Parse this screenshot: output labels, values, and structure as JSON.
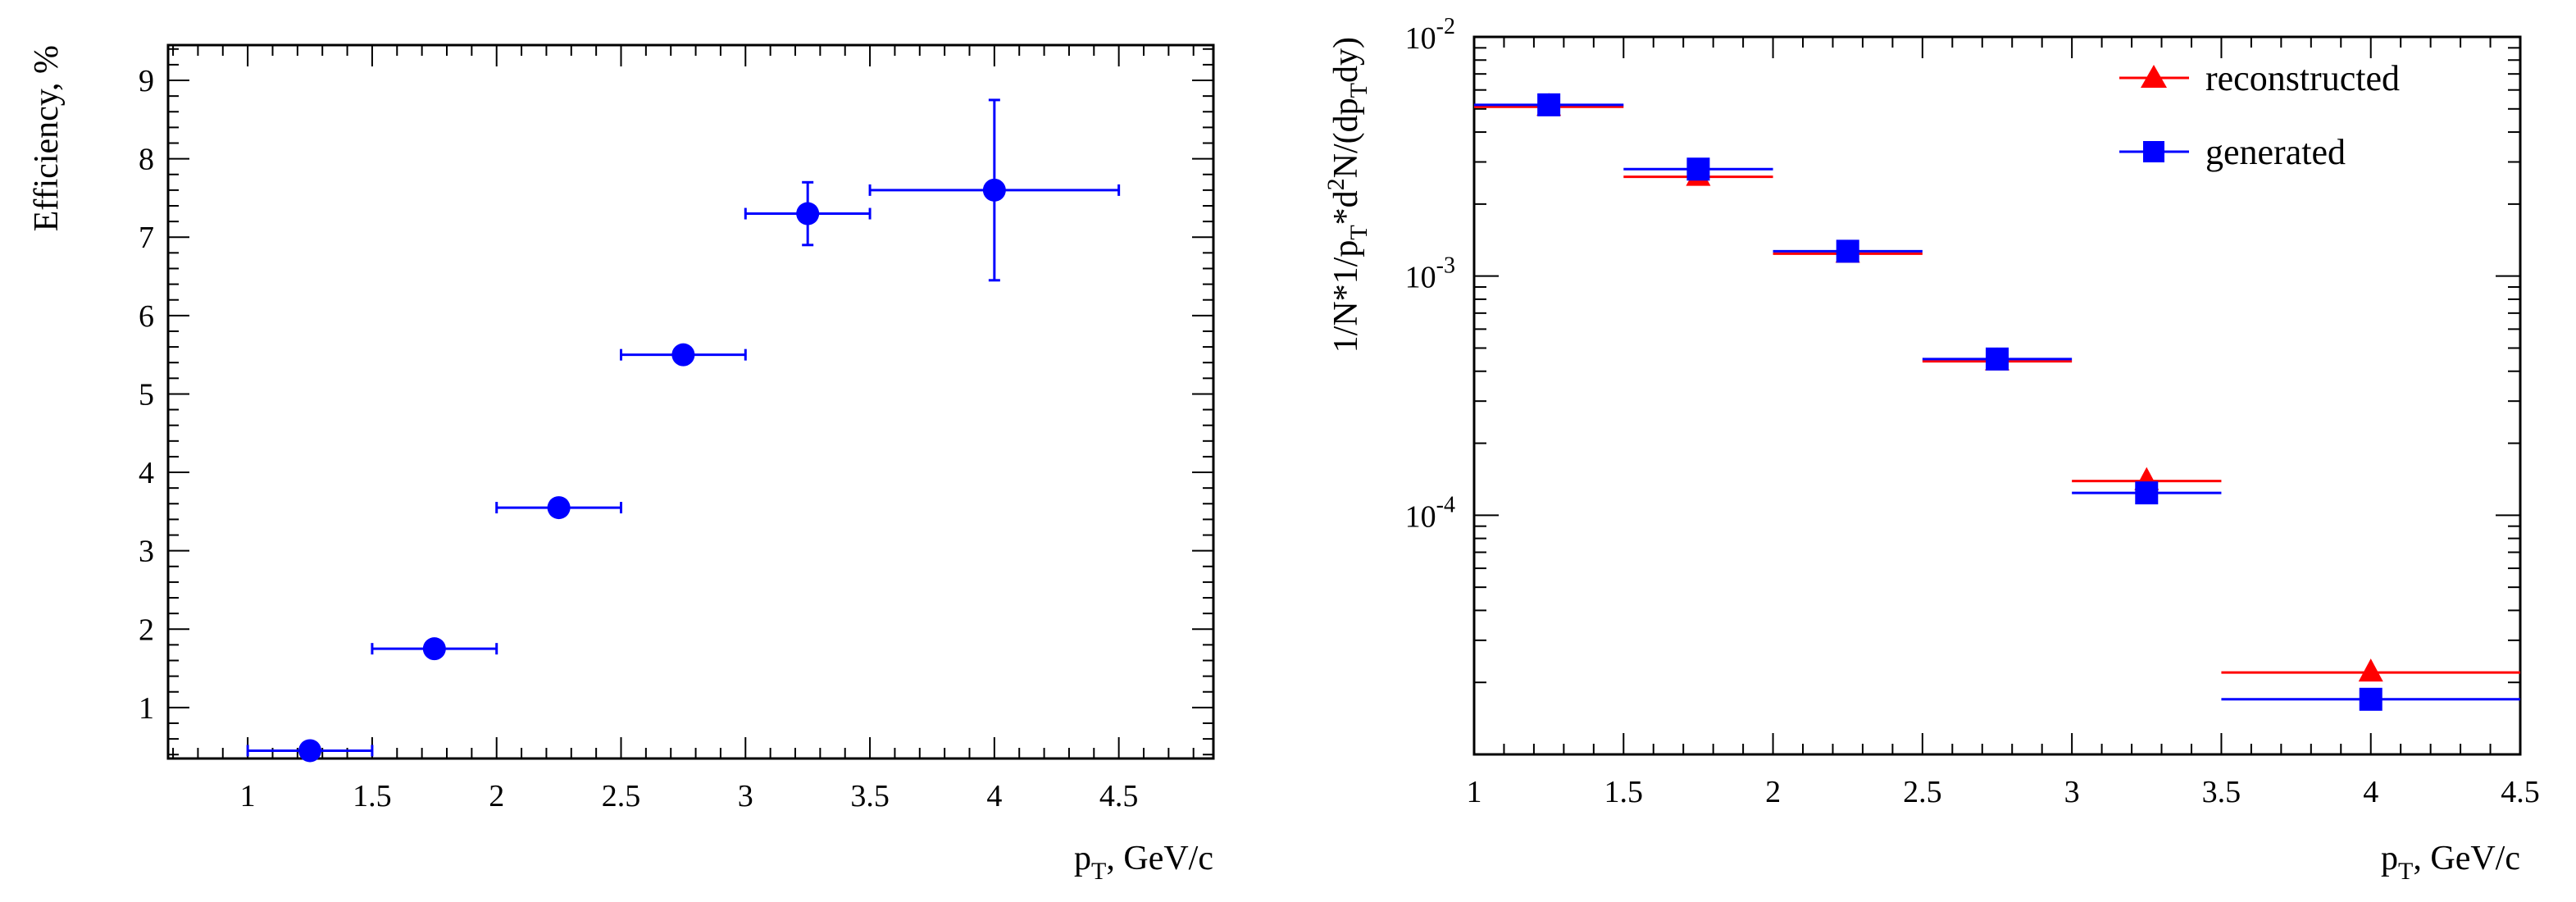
{
  "chart_data": [
    {
      "type": "scatter",
      "title": "",
      "xlabel": {
        "main": "p",
        "sub": "T",
        "rest": ", GeV/c"
      },
      "ylabel": "Efficiency, %",
      "xlim": [
        0.68,
        4.88
      ],
      "ylim": [
        0.35,
        9.45
      ],
      "x_ticks": [
        "1",
        "1.5",
        "2",
        "2.5",
        "3",
        "3.5",
        "4",
        "4.5"
      ],
      "y_ticks": [
        "1",
        "2",
        "3",
        "4",
        "5",
        "6",
        "7",
        "8",
        "9"
      ],
      "series": [
        {
          "name": "efficiency",
          "color": "#0000ff",
          "marker": "circle",
          "points": [
            {
              "x": 1.25,
              "y": 0.45,
              "xlo": 1.0,
              "xhi": 1.5,
              "ylo": 0.4,
              "yhi": 0.5
            },
            {
              "x": 1.75,
              "y": 1.75,
              "xlo": 1.5,
              "xhi": 2.0,
              "ylo": 1.7,
              "yhi": 1.8
            },
            {
              "x": 2.25,
              "y": 3.55,
              "xlo": 2.0,
              "xhi": 2.5,
              "ylo": 3.5,
              "yhi": 3.6
            },
            {
              "x": 2.75,
              "y": 5.5,
              "xlo": 2.5,
              "xhi": 3.0,
              "ylo": 5.42,
              "yhi": 5.58
            },
            {
              "x": 3.25,
              "y": 7.3,
              "xlo": 3.0,
              "xhi": 3.5,
              "ylo": 6.9,
              "yhi": 7.7
            },
            {
              "x": 4.0,
              "y": 7.6,
              "xlo": 3.5,
              "xhi": 4.5,
              "ylo": 6.45,
              "yhi": 8.75
            }
          ]
        }
      ]
    },
    {
      "type": "scatter",
      "title": "",
      "xlabel": {
        "main": "p",
        "sub": "T",
        "rest": ", GeV/c"
      },
      "ylabel": "1/N*1/pT*d2N/(dpTdy)",
      "yscale": "log",
      "xlim": [
        1.0,
        4.5
      ],
      "ylim": [
        1e-05,
        0.01
      ],
      "x_ticks": [
        "1",
        "1.5",
        "2",
        "2.5",
        "3",
        "3.5",
        "4",
        "4.5"
      ],
      "y_ticks": [
        {
          "value": 0.01,
          "base": "10",
          "exp": "-2"
        },
        {
          "value": 0.001,
          "base": "10",
          "exp": "-3"
        },
        {
          "value": 0.0001,
          "base": "10",
          "exp": "-4"
        }
      ],
      "legend": {
        "position": "top-right"
      },
      "series": [
        {
          "name": "reconstructed",
          "color": "#ff0000",
          "marker": "triangle",
          "points": [
            {
              "x": 1.25,
              "y": 0.0051,
              "xlo": 1.0,
              "xhi": 1.5
            },
            {
              "x": 1.75,
              "y": 0.0026,
              "xlo": 1.5,
              "xhi": 2.0
            },
            {
              "x": 2.25,
              "y": 0.00124,
              "xlo": 2.0,
              "xhi": 2.5
            },
            {
              "x": 2.75,
              "y": 0.00044,
              "xlo": 2.5,
              "xhi": 3.0
            },
            {
              "x": 3.25,
              "y": 0.000139,
              "xlo": 3.0,
              "xhi": 3.5
            },
            {
              "x": 4.0,
              "y": 2.2e-05,
              "xlo": 3.5,
              "xhi": 4.5
            }
          ]
        },
        {
          "name": "generated",
          "color": "#0000ff",
          "marker": "square",
          "points": [
            {
              "x": 1.25,
              "y": 0.0052,
              "xlo": 1.0,
              "xhi": 1.5
            },
            {
              "x": 1.75,
              "y": 0.0028,
              "xlo": 1.5,
              "xhi": 2.0
            },
            {
              "x": 2.25,
              "y": 0.00127,
              "xlo": 2.0,
              "xhi": 2.5
            },
            {
              "x": 2.75,
              "y": 0.00045,
              "xlo": 2.5,
              "xhi": 3.0
            },
            {
              "x": 3.25,
              "y": 0.000124,
              "xlo": 3.0,
              "xhi": 3.5
            },
            {
              "x": 4.0,
              "y": 1.7e-05,
              "xlo": 3.5,
              "xhi": 4.5
            }
          ]
        }
      ]
    }
  ]
}
